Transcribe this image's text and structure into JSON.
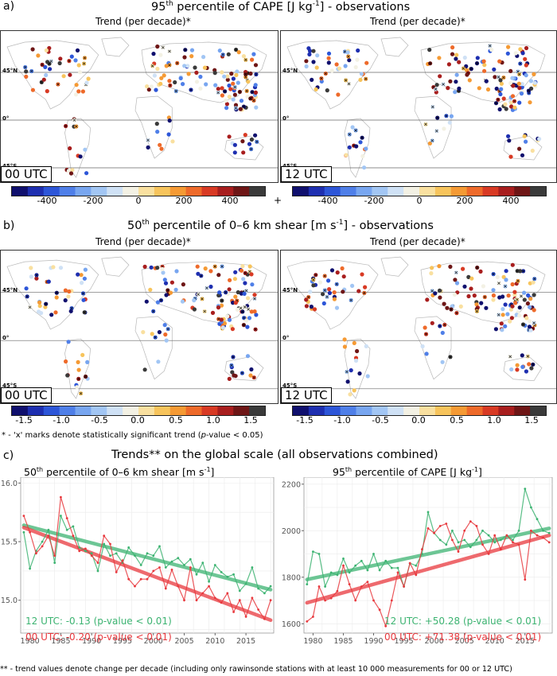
{
  "panel_a": {
    "letter": "a)",
    "title_pre": "95",
    "title_sup": "th",
    "title_mid": " percentile of CAPE [J kg",
    "title_unit_sup": "-1",
    "title_post": "] - observations",
    "left_map_title": "Trend (per decade)*",
    "right_map_title": "Trend (per decade)*",
    "left_utc": "00 UTC",
    "right_utc": "12 UTC",
    "lat_labels": [
      "45°N",
      "0°",
      "45°S"
    ],
    "colorbar_ticks": [
      "-400",
      "-200",
      "0",
      "200",
      "400"
    ],
    "plus_sign": "+"
  },
  "panel_b": {
    "letter": "b)",
    "title_pre": "50",
    "title_sup": "th",
    "title_mid": " percentile of 0–6 km shear [m s",
    "title_unit_sup": "-1",
    "title_post": "] - observations",
    "left_map_title": "Trend (per decade)*",
    "right_map_title": "Trend (per decade)*",
    "left_utc": "00 UTC",
    "right_utc": "12 UTC",
    "lat_labels": [
      "45°N",
      "0°",
      "45°S"
    ],
    "colorbar_ticks": [
      "-1.5",
      "-1.0",
      "-0.5",
      "0.0",
      "0.5",
      "1.0",
      "1.5"
    ]
  },
  "significance_note_pre": "* - 'x' marks denote statistically significant trend (",
  "significance_note_italic": "p",
  "significance_note_post": "-value < 0.05)",
  "panel_c": {
    "letter": "c)",
    "title": "Trends** on the global scale (all observations combined)",
    "footnote": "** - trend values denote change per decade (including only rawinsonde stations with at least 10 000 measurements for 00 or 12 UTC)"
  },
  "colors": {
    "utc12": "#3cb371",
    "utc00": "#e8383d",
    "utc12_trend": "#5cb888",
    "utc00_trend": "#ee6066"
  },
  "chart_data": [
    {
      "type": "line",
      "title_pre": "50",
      "title_sup": "th",
      "title_mid": " percentile of 0–6 km shear [m s",
      "title_unit_sup": "-1",
      "title_post": "]",
      "x": [
        1979,
        1980,
        1981,
        1982,
        1983,
        1984,
        1985,
        1986,
        1987,
        1988,
        1989,
        1990,
        1991,
        1992,
        1993,
        1994,
        1995,
        1996,
        1997,
        1998,
        1999,
        2000,
        2001,
        2002,
        2003,
        2004,
        2005,
        2006,
        2007,
        2008,
        2009,
        2010,
        2011,
        2012,
        2013,
        2014,
        2015,
        2016,
        2017,
        2018,
        2019
      ],
      "xlim": [
        1978.5,
        2019.5
      ],
      "ylim": [
        14.72,
        16.05
      ],
      "xticks": [
        1980,
        1985,
        1990,
        1995,
        2000,
        2005,
        2010,
        2015
      ],
      "yticks": [
        15.0,
        15.5,
        16.0
      ],
      "grid": true,
      "series": [
        {
          "name": "12 UTC",
          "color": "#3cb371",
          "values": [
            15.58,
            15.27,
            15.42,
            15.5,
            15.6,
            15.32,
            15.72,
            15.6,
            15.63,
            15.45,
            15.42,
            15.4,
            15.25,
            15.48,
            15.38,
            15.4,
            15.32,
            15.45,
            15.38,
            15.3,
            15.4,
            15.38,
            15.46,
            15.28,
            15.33,
            15.36,
            15.3,
            15.35,
            15.22,
            15.32,
            15.16,
            15.3,
            15.24,
            15.2,
            15.22,
            15.08,
            15.14,
            15.28,
            15.1,
            15.06,
            15.12
          ],
          "trend_start": 15.64,
          "trend_end": 15.09,
          "annotation": "12 UTC: -0.13 (p-value < 0.01)"
        },
        {
          "name": "00 UTC",
          "color": "#e8383d",
          "values": [
            15.72,
            15.58,
            15.4,
            15.46,
            15.55,
            15.38,
            15.88,
            15.7,
            15.55,
            15.42,
            15.44,
            15.38,
            15.32,
            15.55,
            15.48,
            15.24,
            15.34,
            15.18,
            15.12,
            15.18,
            15.18,
            15.25,
            15.28,
            15.1,
            15.26,
            15.12,
            15.0,
            15.28,
            15.0,
            15.06,
            15.12,
            15.02,
            14.98,
            15.06,
            14.9,
            15.0,
            14.86,
            15.02,
            14.92,
            14.84,
            15.0
          ],
          "trend_start": 15.62,
          "trend_end": 14.83,
          "annotation": "00 UTC: -0.20 (p-value < 0.01)"
        }
      ]
    },
    {
      "type": "line",
      "title_pre": "95",
      "title_sup": "th",
      "title_mid": " percentile of CAPE [J kg",
      "title_unit_sup": "-1",
      "title_post": "]",
      "x": [
        1979,
        1980,
        1981,
        1982,
        1983,
        1984,
        1985,
        1986,
        1987,
        1988,
        1989,
        1990,
        1991,
        1992,
        1993,
        1994,
        1995,
        1996,
        1997,
        1998,
        1999,
        2000,
        2001,
        2002,
        2003,
        2004,
        2005,
        2006,
        2007,
        2008,
        2009,
        2010,
        2011,
        2012,
        2013,
        2014,
        2015,
        2016,
        2017,
        2018,
        2019
      ],
      "xlim": [
        1978.5,
        2019.5
      ],
      "ylim": [
        1560,
        2230
      ],
      "xticks": [
        1980,
        1985,
        1990,
        1995,
        2000,
        2005,
        2010,
        2015
      ],
      "yticks": [
        1600,
        1800,
        2000,
        2200
      ],
      "grid": true,
      "series": [
        {
          "name": "12 UTC",
          "color": "#3cb371",
          "values": [
            1770,
            1910,
            1900,
            1760,
            1820,
            1810,
            1880,
            1820,
            1850,
            1870,
            1830,
            1900,
            1830,
            1870,
            1840,
            1840,
            1760,
            1860,
            1850,
            1900,
            2080,
            1990,
            1960,
            1940,
            2000,
            1950,
            1960,
            1930,
            1960,
            2000,
            1980,
            1950,
            1960,
            1980,
            1960,
            2000,
            2180,
            2100,
            2050,
            2000,
            1990
          ],
          "trend_start": 1790,
          "trend_end": 2010,
          "annotation": "12 UTC: +50.28 (p-value < 0.01)"
        },
        {
          "name": "00 UTC",
          "color": "#e8383d",
          "values": [
            1610,
            1630,
            1760,
            1700,
            1710,
            1740,
            1850,
            1770,
            1700,
            1760,
            1780,
            1700,
            1660,
            1590,
            1700,
            1820,
            1760,
            1860,
            1810,
            1920,
            2010,
            1990,
            2020,
            2030,
            1960,
            1910,
            2000,
            2040,
            2020,
            1940,
            1900,
            1980,
            1920,
            1980,
            1950,
            1940,
            1790,
            2000,
            1980,
            1970,
            1950
          ],
          "trend_start": 1690,
          "trend_end": 1980,
          "annotation": "00 UTC: +71.38 (p-value < 0.01)"
        }
      ]
    }
  ]
}
